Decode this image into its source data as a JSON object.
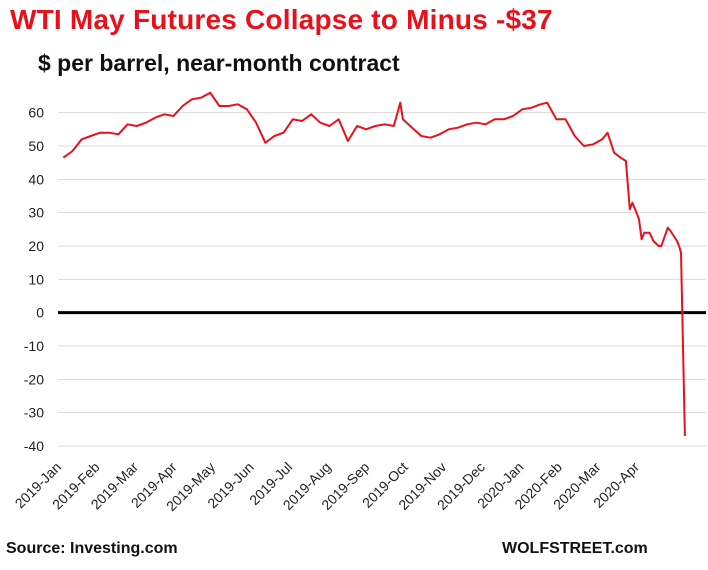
{
  "header": {
    "title": "WTI May Futures Collapse to Minus -$37",
    "subtitle": "$ per barrel, near-month contract"
  },
  "footer": {
    "source": "Source: Investing.com",
    "brand": "WOLFSTREET.com"
  },
  "colors": {
    "line": "#e8111b",
    "grid": "#d9d9d9",
    "zero_line": "#000000",
    "title": "#e8111b"
  },
  "chart_data": {
    "type": "line",
    "title": "WTI May Futures Collapse to Minus -$37",
    "subtitle": "$ per barrel, near-month contract",
    "xlabel": "",
    "ylabel": "",
    "ylim": [
      -40,
      65
    ],
    "yticks": [
      60,
      50,
      40,
      30,
      20,
      10,
      0,
      -10,
      -20,
      -30,
      -40
    ],
    "xtick_labels": [
      "2019-Jan",
      "2019-Feb",
      "2019-Mar",
      "2019-Apr",
      "2019-May",
      "2019-Jun",
      "2019-Jul",
      "2019-Aug",
      "2019-Sep",
      "2019-Oct",
      "2019-Nov",
      "2019-Dec",
      "2020-Jan",
      "2020-Feb",
      "2020-Mar",
      "2020-Apr"
    ],
    "grid": true,
    "legend": "none",
    "series": [
      {
        "x": [
          "2019-01-02",
          "2019-01-09",
          "2019-01-16",
          "2019-01-23",
          "2019-01-30",
          "2019-02-06",
          "2019-02-13",
          "2019-02-20",
          "2019-02-27",
          "2019-03-06",
          "2019-03-13",
          "2019-03-20",
          "2019-03-27",
          "2019-04-03",
          "2019-04-10",
          "2019-04-17",
          "2019-04-24",
          "2019-05-01",
          "2019-05-08",
          "2019-05-15",
          "2019-05-22",
          "2019-05-29",
          "2019-06-05",
          "2019-06-12",
          "2019-06-19",
          "2019-06-26",
          "2019-07-03",
          "2019-07-10",
          "2019-07-17",
          "2019-07-24",
          "2019-07-31",
          "2019-08-07",
          "2019-08-14",
          "2019-08-21",
          "2019-08-28",
          "2019-09-04",
          "2019-09-11",
          "2019-09-16",
          "2019-09-18",
          "2019-09-25",
          "2019-10-02",
          "2019-10-09",
          "2019-10-16",
          "2019-10-23",
          "2019-10-30",
          "2019-11-06",
          "2019-11-13",
          "2019-11-20",
          "2019-11-27",
          "2019-12-04",
          "2019-12-11",
          "2019-12-18",
          "2019-12-25",
          "2020-01-01",
          "2020-01-06",
          "2020-01-13",
          "2020-01-20",
          "2020-01-27",
          "2020-02-03",
          "2020-02-10",
          "2020-02-17",
          "2020-02-21",
          "2020-02-26",
          "2020-03-02",
          "2020-03-06",
          "2020-03-09",
          "2020-03-11",
          "2020-03-13",
          "2020-03-16",
          "2020-03-18",
          "2020-03-20",
          "2020-03-24",
          "2020-03-27",
          "2020-03-31",
          "2020-04-02",
          "2020-04-07",
          "2020-04-09",
          "2020-04-14",
          "2020-04-16",
          "2020-04-17",
          "2020-04-20"
        ],
        "y": [
          46.5,
          48.5,
          52,
          53,
          54,
          54,
          53.5,
          56.5,
          56,
          57,
          58.5,
          59.5,
          59,
          62,
          64,
          64.5,
          66,
          62,
          62,
          62.5,
          61,
          57,
          51,
          53,
          54,
          58,
          57.5,
          59.5,
          57,
          56,
          58,
          51.5,
          56,
          55,
          56,
          56.5,
          56,
          63,
          58,
          55.5,
          53,
          52.5,
          53.5,
          55,
          55.5,
          56.5,
          57,
          56.5,
          58,
          58,
          59,
          61,
          61.5,
          62.5,
          63,
          58,
          58,
          53,
          50,
          50.5,
          52,
          54,
          48,
          46.5,
          45.5,
          31,
          33,
          31,
          28,
          22,
          24,
          24,
          21.5,
          20,
          20,
          25.5,
          24.5,
          21.5,
          19.5,
          18,
          -37
        ]
      }
    ]
  }
}
